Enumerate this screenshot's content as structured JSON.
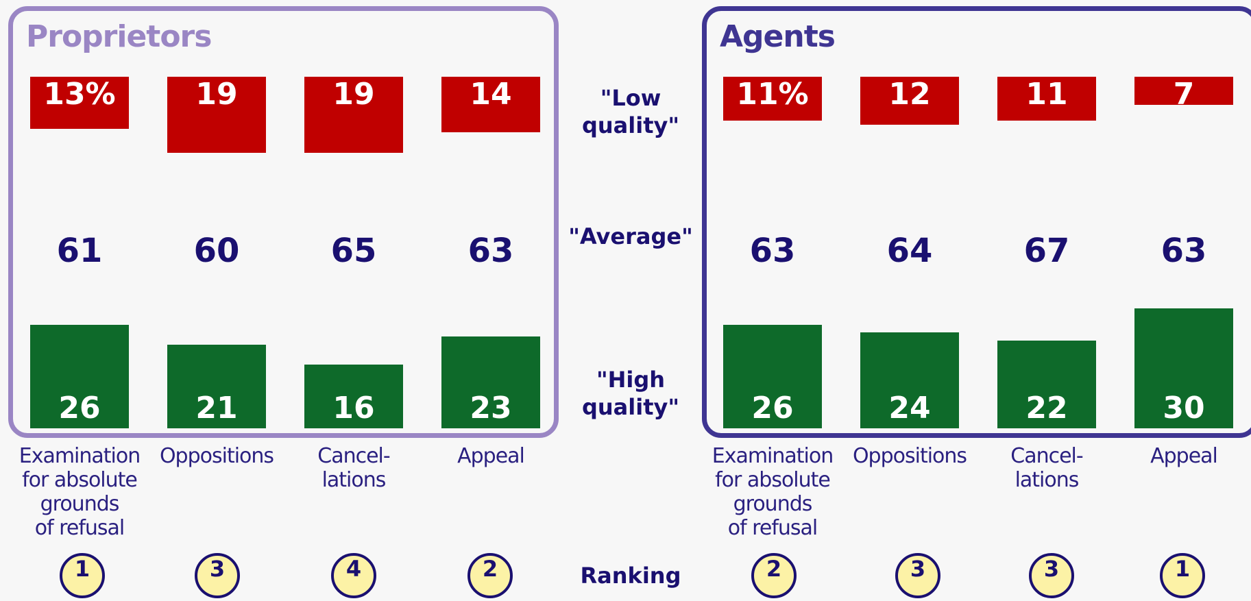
{
  "chart_data": [
    {
      "type": "bar",
      "title": "Proprietors",
      "categories": [
        "Examination\nfor absolute\ngrounds\nof refusal",
        "Oppositions",
        "Cancel-\nlations",
        "Appeal"
      ],
      "series": [
        {
          "name": "\"Low\nquality\"",
          "color": "#c00000",
          "values": [
            13,
            19,
            19,
            14
          ],
          "value_labels": [
            "13%",
            "19",
            "19",
            "14"
          ]
        },
        {
          "name": "\"Average\"",
          "color": "#1a1070",
          "values": [
            61,
            60,
            65,
            63
          ]
        },
        {
          "name": "\"High\nquality\"",
          "color": "#0e6a2a",
          "values": [
            26,
            21,
            16,
            23
          ]
        }
      ],
      "ranking_label": "Ranking",
      "ranking": [
        1,
        3,
        4,
        2
      ],
      "frame_color": "#9a86c4"
    },
    {
      "type": "bar",
      "title": "Agents",
      "categories": [
        "Examination\nfor absolute\ngrounds\nof refusal",
        "Oppositions",
        "Cancel-\nlations",
        "Appeal"
      ],
      "series": [
        {
          "color": "#c00000",
          "values": [
            11,
            12,
            11,
            7
          ],
          "value_labels": [
            "11%",
            "12",
            "11",
            "7"
          ]
        },
        {
          "color": "#1a1070",
          "values": [
            63,
            64,
            67,
            63
          ]
        },
        {
          "color": "#0e6a2a",
          "values": [
            26,
            24,
            22,
            30
          ]
        }
      ],
      "ranking": [
        2,
        3,
        3,
        1
      ],
      "frame_color": "#3f3592"
    }
  ]
}
